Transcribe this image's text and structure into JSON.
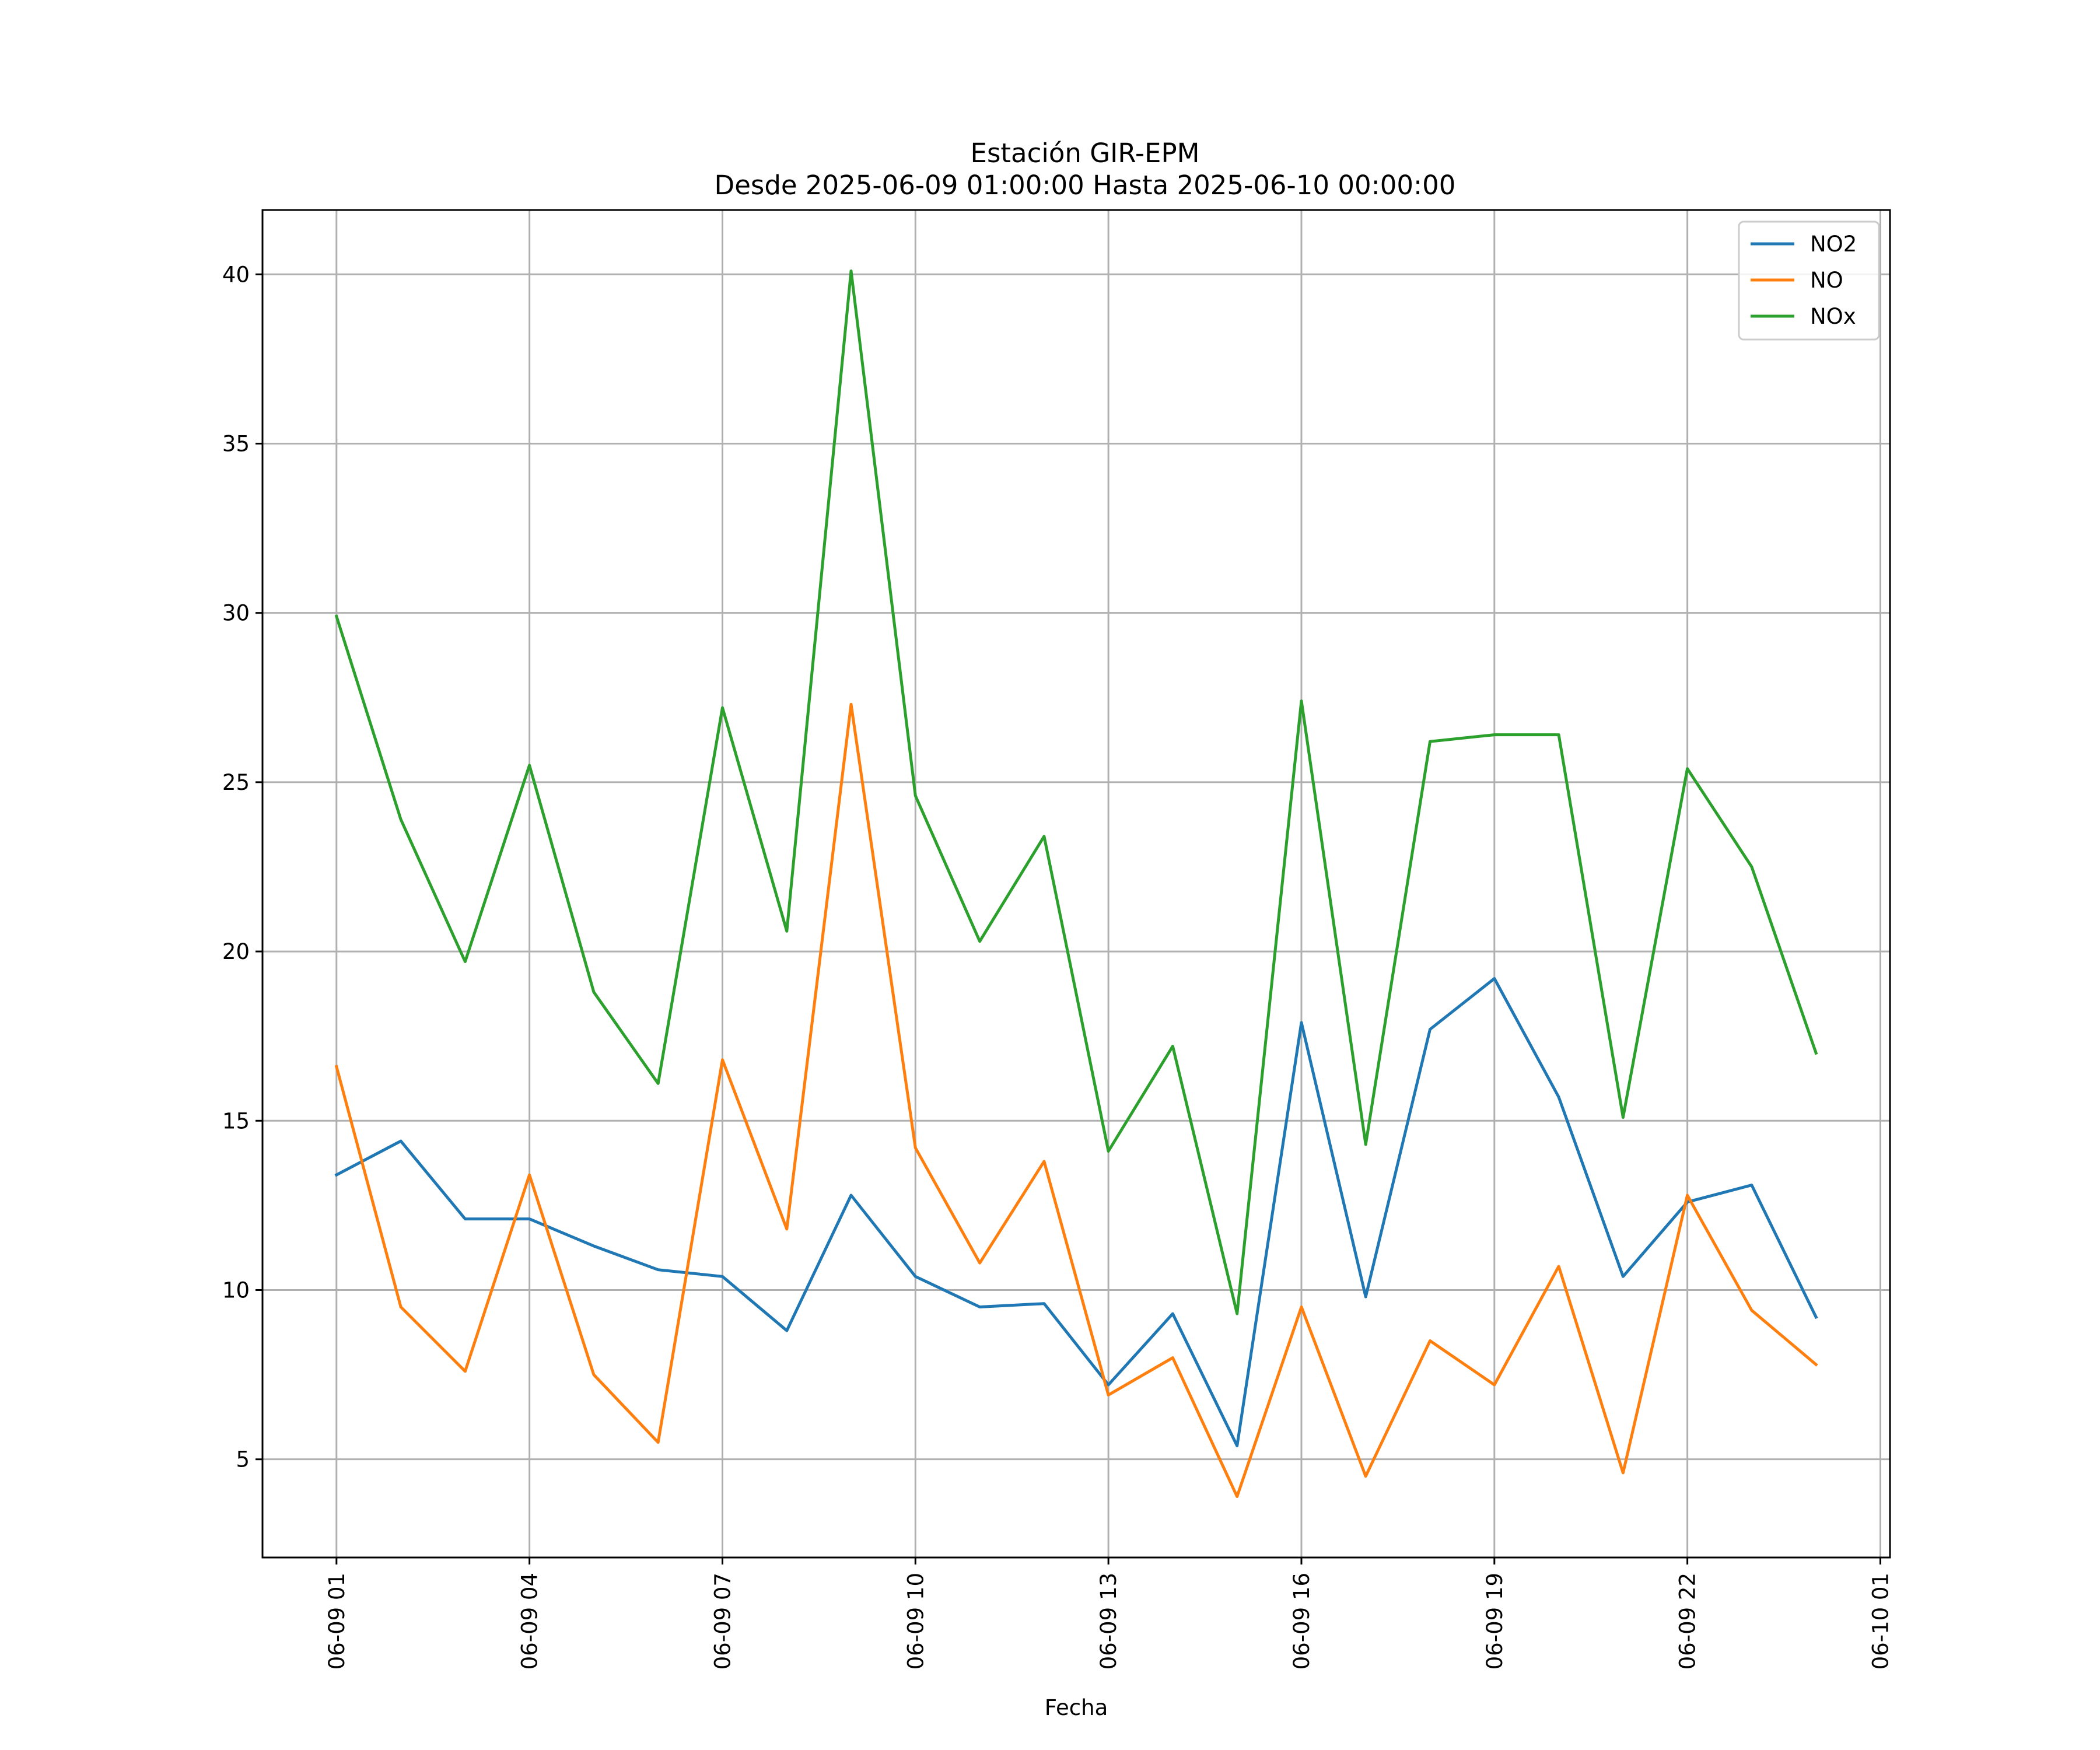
{
  "chart_data": {
    "type": "line",
    "title": "Estación GIR-EPM",
    "subtitle": "Desde 2025-06-09 01:00:00 Hasta 2025-06-10 00:00:00",
    "xlabel": "Fecha",
    "ylabel": "",
    "x": [
      "2025-06-09 01:00",
      "2025-06-09 02:00",
      "2025-06-09 03:00",
      "2025-06-09 04:00",
      "2025-06-09 05:00",
      "2025-06-09 06:00",
      "2025-06-09 07:00",
      "2025-06-09 08:00",
      "2025-06-09 09:00",
      "2025-06-09 10:00",
      "2025-06-09 11:00",
      "2025-06-09 12:00",
      "2025-06-09 13:00",
      "2025-06-09 14:00",
      "2025-06-09 15:00",
      "2025-06-09 16:00",
      "2025-06-09 17:00",
      "2025-06-09 18:00",
      "2025-06-09 19:00",
      "2025-06-09 20:00",
      "2025-06-09 21:00",
      "2025-06-09 22:00",
      "2025-06-09 23:00",
      "2025-06-10 00:00"
    ],
    "x_tick_labels": [
      "06-09 01",
      "06-09 04",
      "06-09 07",
      "06-09 10",
      "06-09 13",
      "06-09 16",
      "06-09 19",
      "06-09 22",
      "06-10 01"
    ],
    "x_tick_values": [
      "2025-06-09 01:00",
      "2025-06-09 04:00",
      "2025-06-09 07:00",
      "2025-06-09 10:00",
      "2025-06-09 13:00",
      "2025-06-09 16:00",
      "2025-06-09 19:00",
      "2025-06-09 22:00",
      "2025-06-10 01:00"
    ],
    "xlim": [
      "2025-06-08 23:51",
      "2025-06-10 01:09"
    ],
    "y_ticks": [
      5,
      10,
      15,
      20,
      25,
      30,
      35,
      40
    ],
    "ylim": [
      2.1,
      41.9
    ],
    "grid": true,
    "legend_position": "top-right",
    "series": [
      {
        "name": "NO2",
        "color": "#1f77b4",
        "values": [
          13.4,
          14.4,
          12.1,
          12.1,
          11.3,
          10.6,
          10.4,
          8.8,
          12.8,
          10.4,
          9.5,
          9.6,
          7.2,
          9.3,
          5.4,
          17.9,
          9.8,
          17.7,
          19.2,
          15.7,
          10.4,
          12.6,
          13.1,
          9.2
        ]
      },
      {
        "name": "NO",
        "color": "#ff7f0e",
        "values": [
          16.6,
          9.5,
          7.6,
          13.4,
          7.5,
          5.5,
          16.8,
          11.8,
          27.3,
          14.2,
          10.8,
          13.8,
          6.9,
          8.0,
          3.9,
          9.5,
          4.5,
          8.5,
          7.2,
          10.7,
          4.6,
          12.8,
          9.4,
          7.8
        ]
      },
      {
        "name": "NOx",
        "color": "#2ca02c",
        "values": [
          29.9,
          23.9,
          19.7,
          25.5,
          18.8,
          16.1,
          27.2,
          20.6,
          40.1,
          24.6,
          20.3,
          23.4,
          14.1,
          17.2,
          9.3,
          27.4,
          14.3,
          26.2,
          26.4,
          26.4,
          15.1,
          25.4,
          22.5,
          17.0
        ]
      }
    ]
  }
}
